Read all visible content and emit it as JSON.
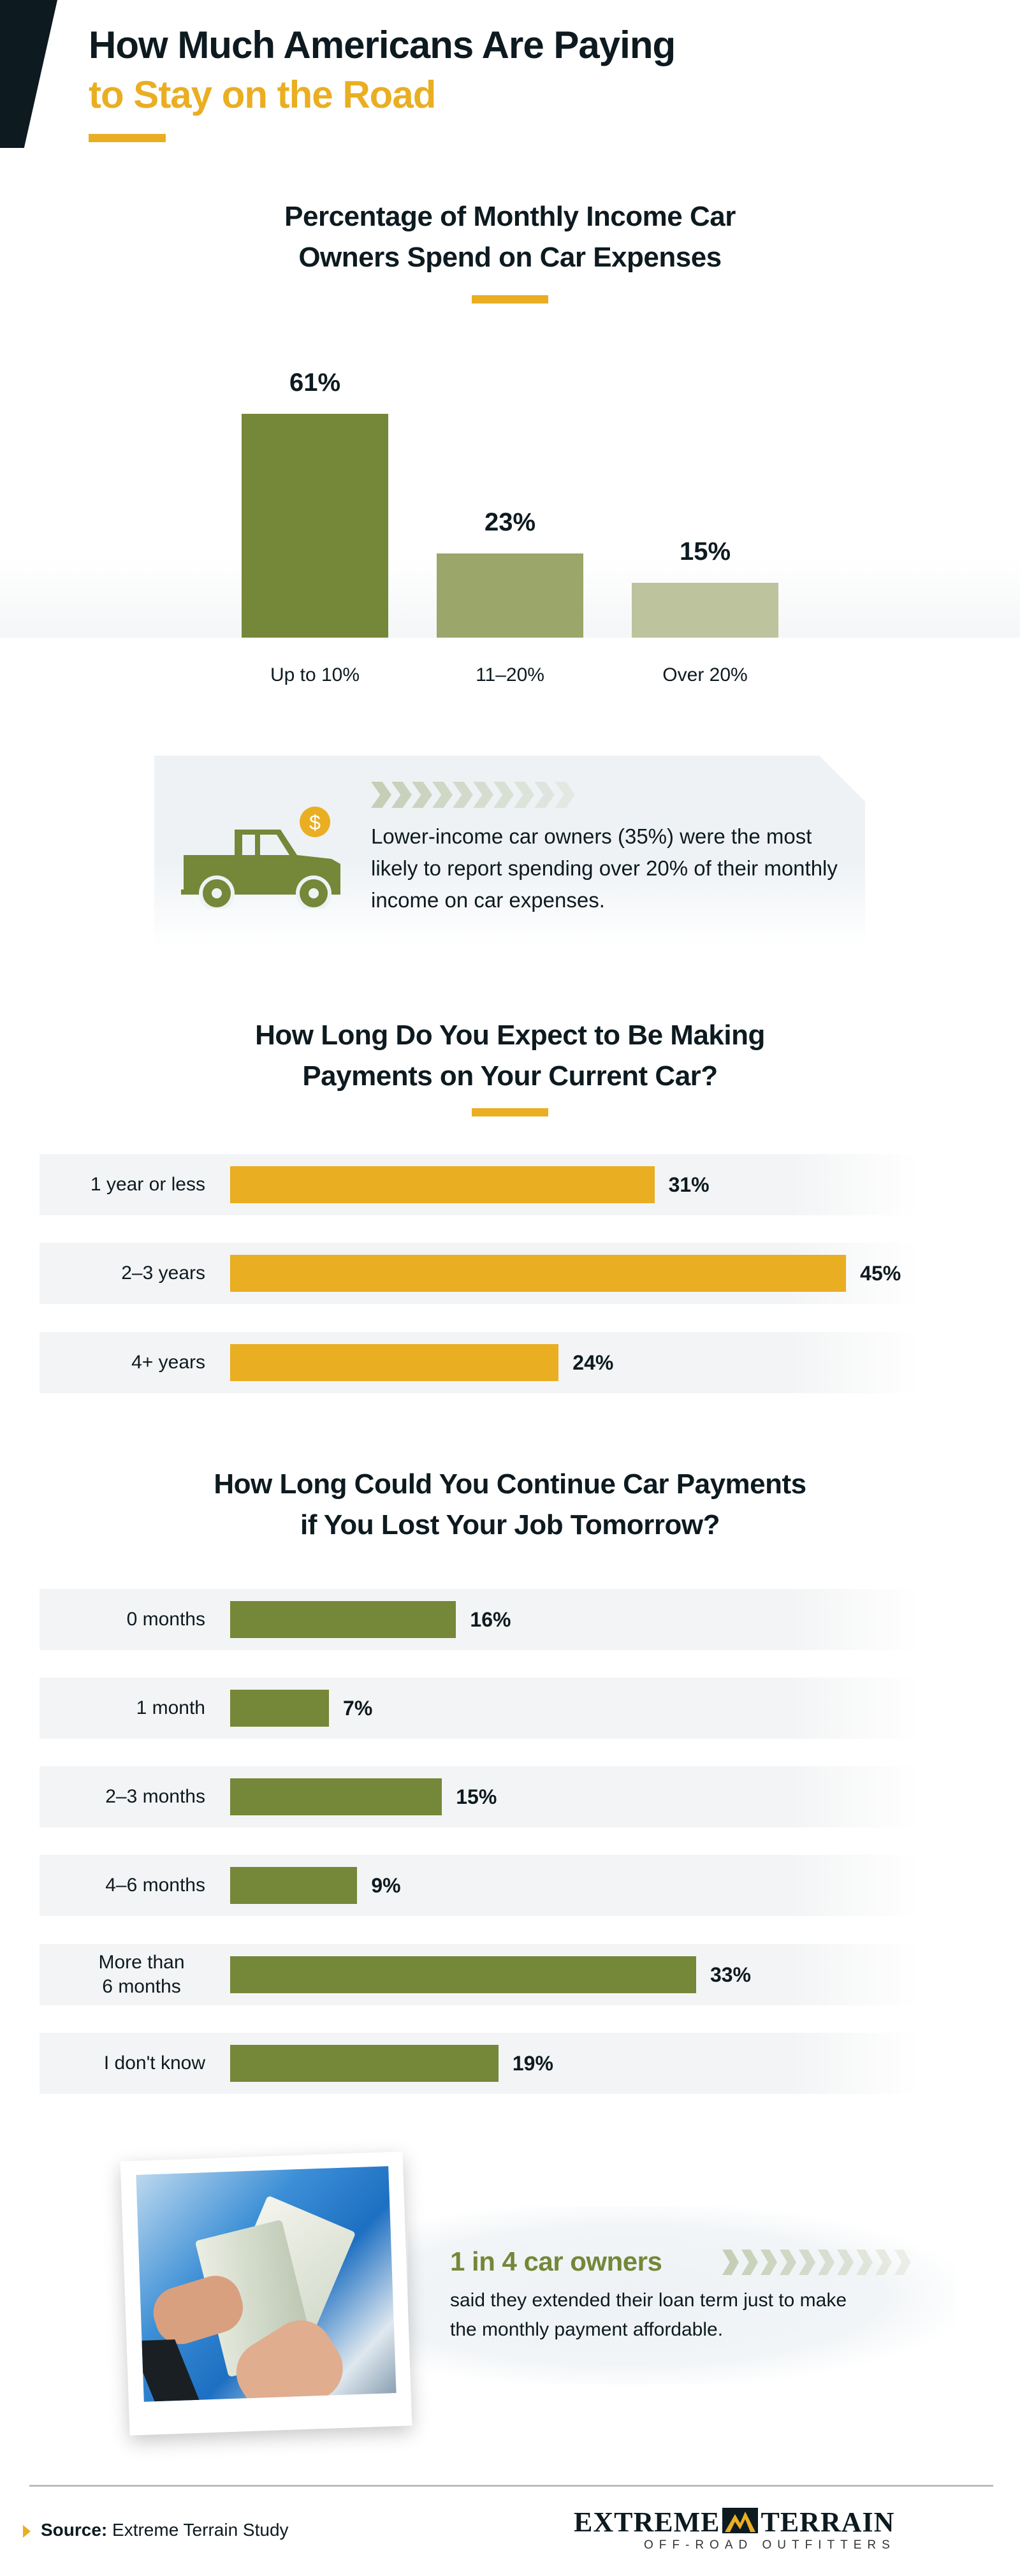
{
  "header": {
    "title_line1": "How Much Americans Are Paying",
    "title_line2": "to Stay on the Road"
  },
  "colors": {
    "dark": "#0d1a20",
    "gold": "#e9ae22",
    "green": "#758738",
    "green_mid": "#9aa66a",
    "green_light": "#bdc49d"
  },
  "chart_data": [
    {
      "type": "bar",
      "title": "Percentage of Monthly Income Car Owners Spend on Car Expenses",
      "categories": [
        "Up to 10%",
        "11–20%",
        "Over 20%"
      ],
      "values": [
        61,
        23,
        15
      ],
      "value_labels": [
        "61%",
        "23%",
        "15%"
      ],
      "bar_colors": [
        "#758738",
        "#9aa66a",
        "#bdc49d"
      ]
    },
    {
      "type": "bar",
      "orientation": "horizontal",
      "title": "How Long Do You Expect to Be Making Payments on Your Current Car?",
      "categories": [
        "1 year or less",
        "2–3 years",
        "4+ years"
      ],
      "values": [
        31,
        45,
        24
      ],
      "value_labels": [
        "31%",
        "45%",
        "24%"
      ],
      "bar_color": "#e9ae22"
    },
    {
      "type": "bar",
      "orientation": "horizontal",
      "title": "How Long Could You Continue Car Payments if You Lost Your Job Tomorrow?",
      "categories": [
        "0 months",
        "1 month",
        "2–3 months",
        "4–6 months",
        "More than\n6 months",
        "I don't know"
      ],
      "values": [
        16,
        7,
        15,
        9,
        33,
        19
      ],
      "value_labels": [
        "16%",
        "7%",
        "15%",
        "9%",
        "33%",
        "19%"
      ],
      "bar_color": "#758738"
    }
  ],
  "sections": {
    "chart1_title_line1": "Percentage of Monthly Income Car",
    "chart1_title_line2": "Owners Spend on Car Expenses",
    "chart2_title_line1": "How Long Do You Expect to Be Making",
    "chart2_title_line2": "Payments on Your Current Car?",
    "chart3_title_line1": "How Long Could You Continue Car Payments",
    "chart3_title_line2": "if You Lost Your Job Tomorrow?"
  },
  "callout": {
    "icon": "pickup-truck-dollar-icon",
    "text": "Lower-income car owners (35%) were the most likely to report spending over 20% of their monthly income on car expenses."
  },
  "stat": {
    "headline": "1 in 4 car owners",
    "text": "said they extended their loan term just to make the monthly payment affordable.",
    "image": "hands-counting-dollar-bills-photo"
  },
  "footer": {
    "source_label": "Source:",
    "source_text": "Extreme Terrain Study",
    "logo_word1": "EXTREME",
    "logo_word2": "TERRAIN",
    "logo_tagline": "OFF-ROAD OUTFITTERS"
  }
}
